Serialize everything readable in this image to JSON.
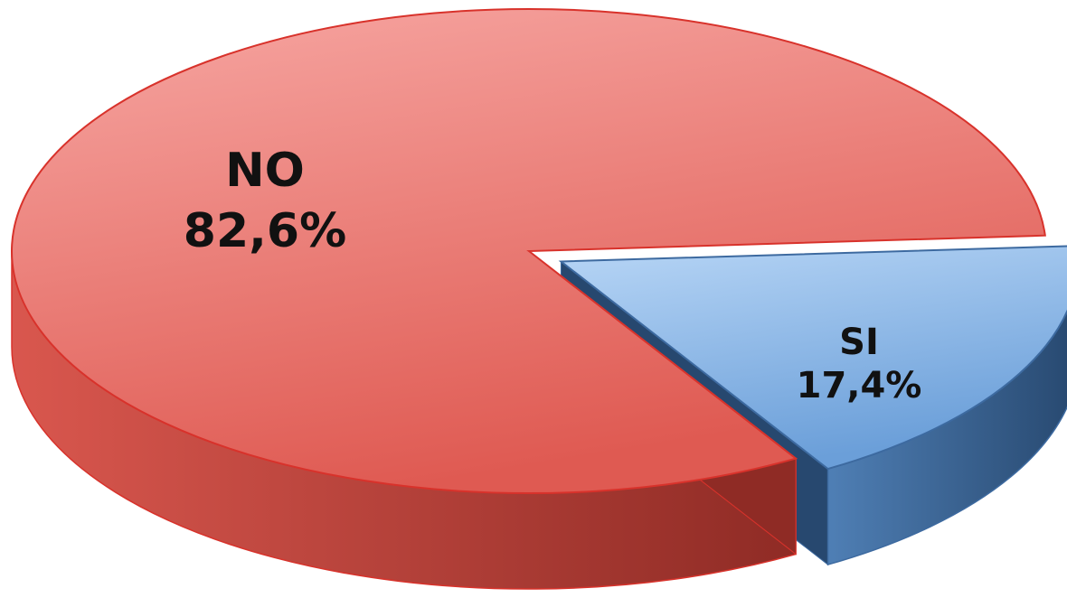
{
  "chart_data": {
    "type": "pie",
    "style": "3d-exploded",
    "slices": [
      {
        "label": "NO",
        "value": 82.6,
        "value_text": "82,6%",
        "colors": {
          "top_light": "#f7a7a3",
          "top_dark": "#df5a52",
          "side_light": "#d9574e",
          "side_dark": "#8f2b25",
          "edge": "#d8322b"
        }
      },
      {
        "label": "SI",
        "value": 17.4,
        "value_text": "17,4%",
        "exploded": true,
        "colors": {
          "top_light": "#b8d6f6",
          "top_dark": "#6b9fd9",
          "side_light": "#4f7fb5",
          "side_dark": "#27486f",
          "edge": "#3d6aa0"
        }
      }
    ]
  }
}
